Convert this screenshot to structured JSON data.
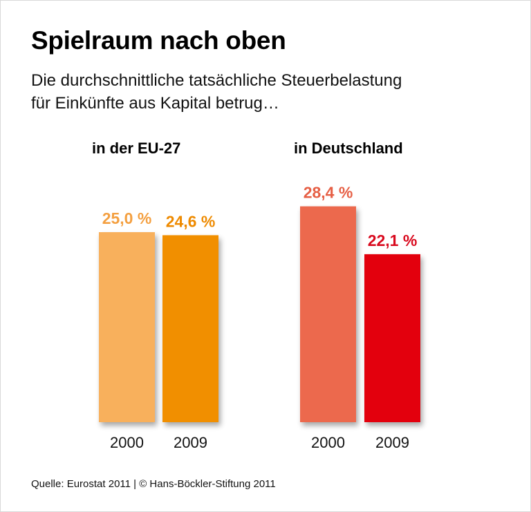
{
  "title": "Spielraum nach oben",
  "subtitle_lines": [
    "Die durchschnittliche tatsächliche Steuerbelastung",
    "für Einkünfte aus Kapital betrug…"
  ],
  "source": "Quelle: Eurostat 2011 | © Hans-Böckler-Stiftung 2011",
  "chart_data": {
    "type": "bar",
    "unit": "%",
    "groups": [
      {
        "title": "in der EU-27",
        "bars": [
          {
            "category": "2000",
            "value": 25.0,
            "label": "25,0 %",
            "color": "#f8b05c",
            "label_color": "#f4a041"
          },
          {
            "category": "2009",
            "value": 24.6,
            "label": "24,6 %",
            "color": "#f18f00",
            "label_color": "#ee8a00"
          }
        ]
      },
      {
        "title": "in Deutschland",
        "bars": [
          {
            "category": "2000",
            "value": 28.4,
            "label": "28,4 %",
            "color": "#ec694d",
            "label_color": "#e65f45"
          },
          {
            "category": "2009",
            "value": 22.1,
            "label": "22,1 %",
            "color": "#e3000f",
            "label_color": "#d90a1e"
          }
        ]
      }
    ]
  }
}
